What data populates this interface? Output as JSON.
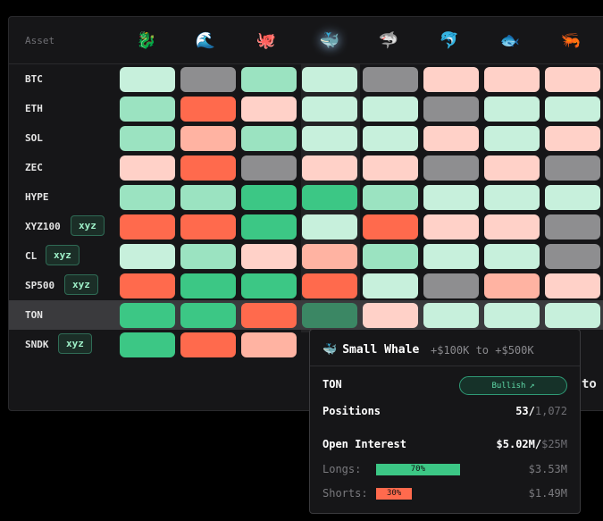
{
  "header": {
    "asset_label": "Asset",
    "columns": [
      {
        "icon": "🐉",
        "name": "dragon-icon"
      },
      {
        "icon": "🌊",
        "name": "wave-icon"
      },
      {
        "icon": "🐙",
        "name": "octopus-icon"
      },
      {
        "icon": "🐳",
        "name": "whale-icon",
        "active": true
      },
      {
        "icon": "🦈",
        "name": "shark-icon"
      },
      {
        "icon": "🐬",
        "name": "dolphin-icon"
      },
      {
        "icon": "🐟",
        "name": "fish-icon"
      },
      {
        "icon": "🦐",
        "name": "shrimp-icon"
      }
    ]
  },
  "colors": {
    "green_strong": "#3cc785",
    "green_mid": "#9be3c1",
    "green_light": "#c7f0dc",
    "red_strong": "#ff6a4d",
    "red_mid": "#ffb3a2",
    "red_light": "#ffd1c8",
    "gray": "#8e8e90"
  },
  "rows": [
    {
      "label": "BTC",
      "tag": "",
      "cells": [
        "gl",
        "gr",
        "gm",
        "gl",
        "gr",
        "rl",
        "rl",
        "rl"
      ]
    },
    {
      "label": "ETH",
      "tag": "",
      "cells": [
        "gm",
        "rs",
        "rl",
        "gl",
        "gl",
        "gr",
        "gl",
        "gl"
      ]
    },
    {
      "label": "SOL",
      "tag": "",
      "cells": [
        "gm",
        "rm",
        "gm",
        "gl",
        "gl",
        "rl",
        "gl",
        "rl"
      ]
    },
    {
      "label": "ZEC",
      "tag": "",
      "cells": [
        "rl",
        "rs",
        "gr",
        "rl",
        "rl",
        "gr",
        "rl",
        "gr"
      ]
    },
    {
      "label": "HYPE",
      "tag": "",
      "cells": [
        "gm",
        "gm",
        "gs",
        "gs",
        "gm",
        "gl",
        "gl",
        "gl"
      ]
    },
    {
      "label": "XYZ100",
      "tag": "xyz",
      "cells": [
        "rs",
        "rs",
        "gs",
        "gl",
        "rs",
        "rl",
        "rl",
        "gr"
      ]
    },
    {
      "label": "CL",
      "tag": "xyz",
      "cells": [
        "gl",
        "gm",
        "rl",
        "rm",
        "gm",
        "gl",
        "gl",
        "gr"
      ]
    },
    {
      "label": "SP500",
      "tag": "xyz",
      "cells": [
        "rs",
        "gs",
        "gs",
        "rs",
        "gl",
        "gr",
        "rm",
        "rl"
      ]
    },
    {
      "label": "TON",
      "tag": "",
      "selected": true,
      "cells": [
        "gs",
        "gs",
        "rs",
        "gs",
        "rl",
        "gl",
        "gl",
        "gl"
      ]
    },
    {
      "label": "SNDK",
      "tag": "xyz",
      "cells": [
        "gs",
        "rs",
        "rm",
        "",
        "",
        "",
        "",
        ""
      ]
    }
  ],
  "tooltip": {
    "icon": "🐳",
    "title": "Small Whale",
    "range": "+$100K to +$500K",
    "asset": "TON",
    "sentiment": "Bullish",
    "positions_label": "Positions",
    "positions_value": "53/",
    "positions_total": "1,072",
    "oi_label": "Open Interest",
    "oi_value": "$5.02M/",
    "oi_total": "$25M",
    "longs_label": "Longs:",
    "longs_pct": "70%",
    "longs_fraction": 0.7,
    "longs_value": "$3.53M",
    "shorts_label": "Shorts:",
    "shorts_pct": "30%",
    "shorts_fraction": 0.3,
    "shorts_value": "$1.49M"
  },
  "partial_text": "to"
}
